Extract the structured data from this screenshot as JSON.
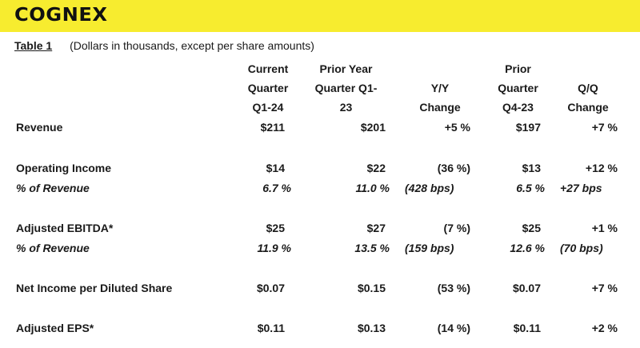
{
  "brand": {
    "logo_text": "COGNEX",
    "accent_color": "#f7ec2f"
  },
  "caption": {
    "table_label": "Table 1",
    "note": "(Dollars in thousands, except per share amounts)"
  },
  "columns": [
    {
      "lines": [
        "Current",
        "Quarter",
        "Q1-24"
      ]
    },
    {
      "lines": [
        "Prior Year",
        "Quarter Q1-",
        "23"
      ]
    },
    {
      "lines": [
        "Y/Y",
        "Change"
      ]
    },
    {
      "lines": [
        "Prior",
        "Quarter",
        "Q4-23"
      ]
    },
    {
      "lines": [
        "Q/Q",
        "Change"
      ]
    }
  ],
  "rows": [
    {
      "label": "Revenue",
      "current": "$211",
      "prior_year": "$201",
      "yy_change": "+5 %",
      "prior_q": "$197",
      "qq_change": "+7 %"
    },
    {
      "label": "Operating Income",
      "current": "$14",
      "prior_year": "$22",
      "yy_change": "(36 %)",
      "prior_q": "$13",
      "qq_change": "+12 %"
    },
    {
      "label": "% of Revenue",
      "current": "6.7 %",
      "prior_year": "11.0 %",
      "yy_change": "(428 bps)",
      "prior_q": "6.5 %",
      "qq_change": "+27 bps"
    },
    {
      "label": "Adjusted EBITDA*",
      "current": "$25",
      "prior_year": "$27",
      "yy_change": "(7 %)",
      "prior_q": "$25",
      "qq_change": "+1 %"
    },
    {
      "label": "% of Revenue",
      "current": "11.9 %",
      "prior_year": "13.5 %",
      "yy_change": "(159 bps)",
      "prior_q": "12.6 %",
      "qq_change": "(70 bps)"
    },
    {
      "label": "Net Income per Diluted Share",
      "current": "$0.07",
      "prior_year": "$0.15",
      "yy_change": "(53 %)",
      "prior_q": "$0.07",
      "qq_change": "+7 %"
    },
    {
      "label": "Adjusted EPS*",
      "current": "$0.11",
      "prior_year": "$0.13",
      "yy_change": "(14 %)",
      "prior_q": "$0.11",
      "qq_change": "+2 %"
    }
  ]
}
